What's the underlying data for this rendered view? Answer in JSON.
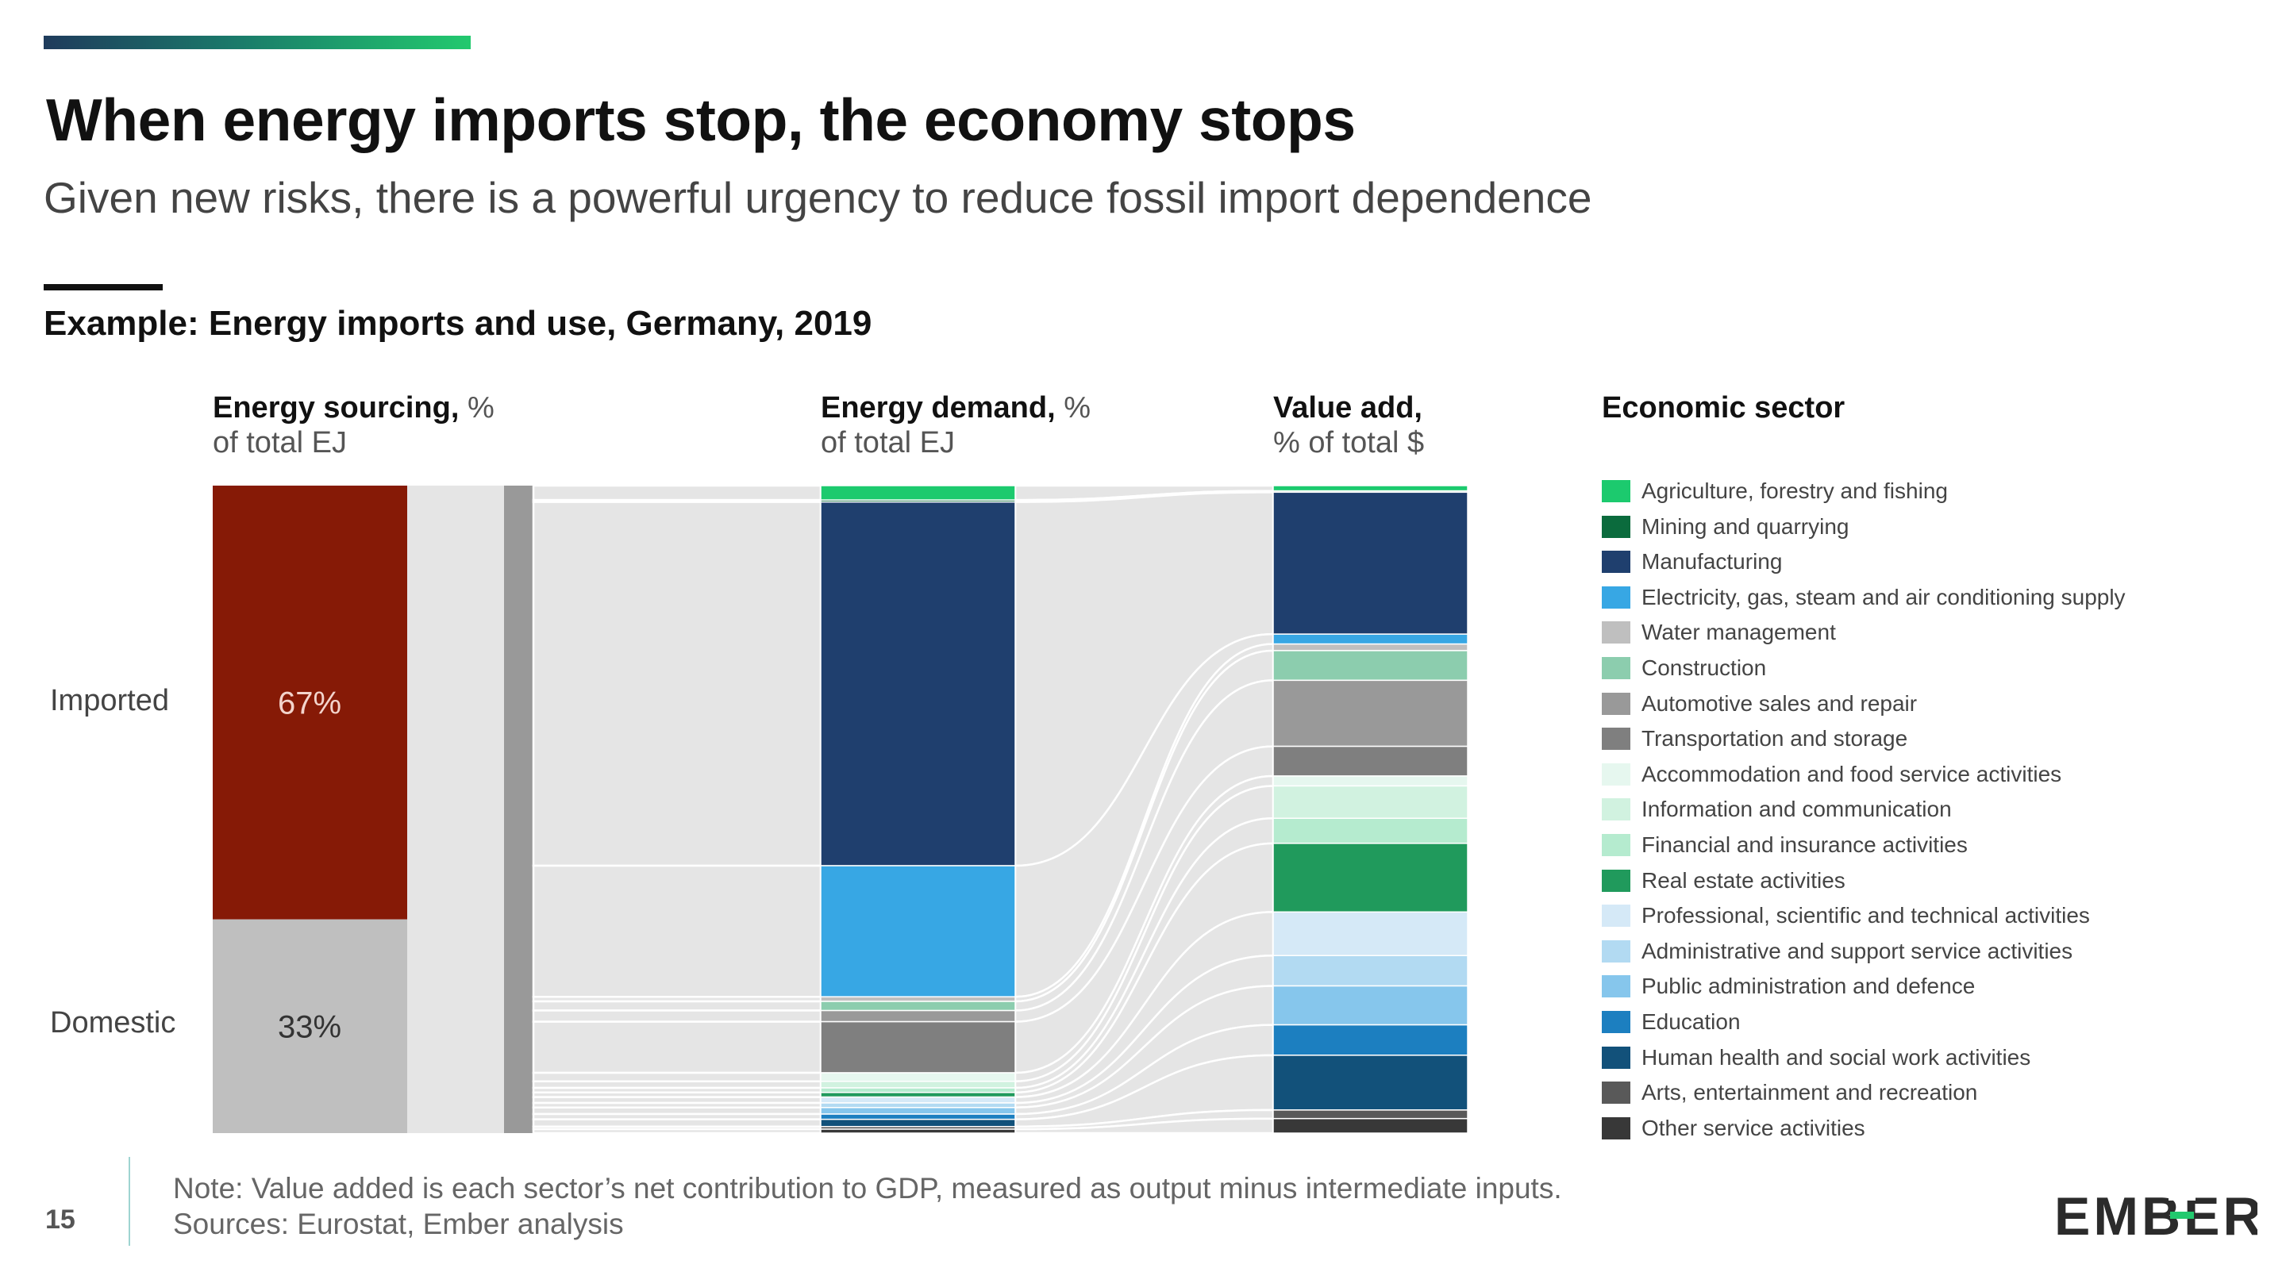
{
  "header": {
    "title": "When energy imports stop, the economy stops",
    "subtitle": "Given new risks, there is a powerful urgency to reduce fossil import dependence",
    "chart_title": "Example: Energy imports and use, Germany, 2019"
  },
  "columns": {
    "sourcing": {
      "bold": "Energy sourcing,",
      "unit": " %",
      "line2": "of total EJ"
    },
    "demand": {
      "bold": "Energy demand,",
      "unit": " %",
      "line2": "of total EJ"
    },
    "value_add": {
      "bold": "Value add,",
      "line2": "% of total $"
    },
    "sector": {
      "bold": "Economic sector"
    }
  },
  "footer": {
    "note": "Note: Value added is each sector’s net contribution to GDP, measured as output minus intermediate inputs.",
    "sources": "Sources: Eurostat, Ember analysis",
    "page": "15",
    "logo": "EMBER"
  },
  "colors": {
    "imported": "#861a06",
    "domestic": "#bfbfbf",
    "flow": "#e5e5e5",
    "mix_bar": "#999999"
  },
  "chart_data": {
    "type": "sankey",
    "sourcing": [
      {
        "label": "Imported",
        "value": 67,
        "data_label": "67%"
      },
      {
        "label": "Domestic",
        "value": 33,
        "data_label": "33%"
      }
    ],
    "sectors": [
      {
        "name": "Agriculture, forestry and fishing",
        "color": "#1cca6e",
        "energy": 2.2,
        "value_add": 0.8
      },
      {
        "name": "Mining and quarrying",
        "color": "#0b6b3d",
        "energy": 0.3,
        "value_add": 0.2
      },
      {
        "name": "Manufacturing",
        "color": "#1f3f6e",
        "energy": 55.5,
        "value_add": 21.5
      },
      {
        "name": "Electricity, gas, steam and air conditioning supply",
        "color": "#37a7e4",
        "energy": 20.0,
        "value_add": 1.5
      },
      {
        "name": "Water management",
        "color": "#bfbfbf",
        "energy": 0.7,
        "value_add": 1.0
      },
      {
        "name": "Construction",
        "color": "#8ccdae",
        "energy": 1.4,
        "value_add": 4.5
      },
      {
        "name": "Automotive sales and repair",
        "color": "#999999",
        "energy": 1.7,
        "value_add": 10.0
      },
      {
        "name": "Transportation and storage",
        "color": "#7f7f7f",
        "energy": 7.8,
        "value_add": 4.5
      },
      {
        "name": "Accommodation and food service activities",
        "color": "#e6f7ef",
        "energy": 1.3,
        "value_add": 1.5
      },
      {
        "name": "Information and communication",
        "color": "#d1f2e0",
        "energy": 1.0,
        "value_add": 4.9
      },
      {
        "name": "Financial and insurance activities",
        "color": "#b5ebcf",
        "energy": 0.7,
        "value_add": 3.8
      },
      {
        "name": "Real estate activities",
        "color": "#209a5c",
        "energy": 0.7,
        "value_add": 10.4
      },
      {
        "name": "Professional, scientific and technical activities",
        "color": "#d5e9f7",
        "energy": 0.9,
        "value_add": 6.6
      },
      {
        "name": "Administrative and support service activities",
        "color": "#b2daf2",
        "energy": 0.7,
        "value_add": 4.6
      },
      {
        "name": "Public administration and defence",
        "color": "#86c6ec",
        "energy": 1.0,
        "value_add": 5.9
      },
      {
        "name": "Education",
        "color": "#1c7fc0",
        "energy": 0.8,
        "value_add": 4.6
      },
      {
        "name": "Human health and social work activities",
        "color": "#12517a",
        "energy": 1.1,
        "value_add": 8.3
      },
      {
        "name": "Arts, entertainment and recreation",
        "color": "#595959",
        "energy": 0.4,
        "value_add": 1.3
      },
      {
        "name": "Other service activities",
        "color": "#383838",
        "energy": 0.6,
        "value_add": 2.2
      }
    ]
  }
}
